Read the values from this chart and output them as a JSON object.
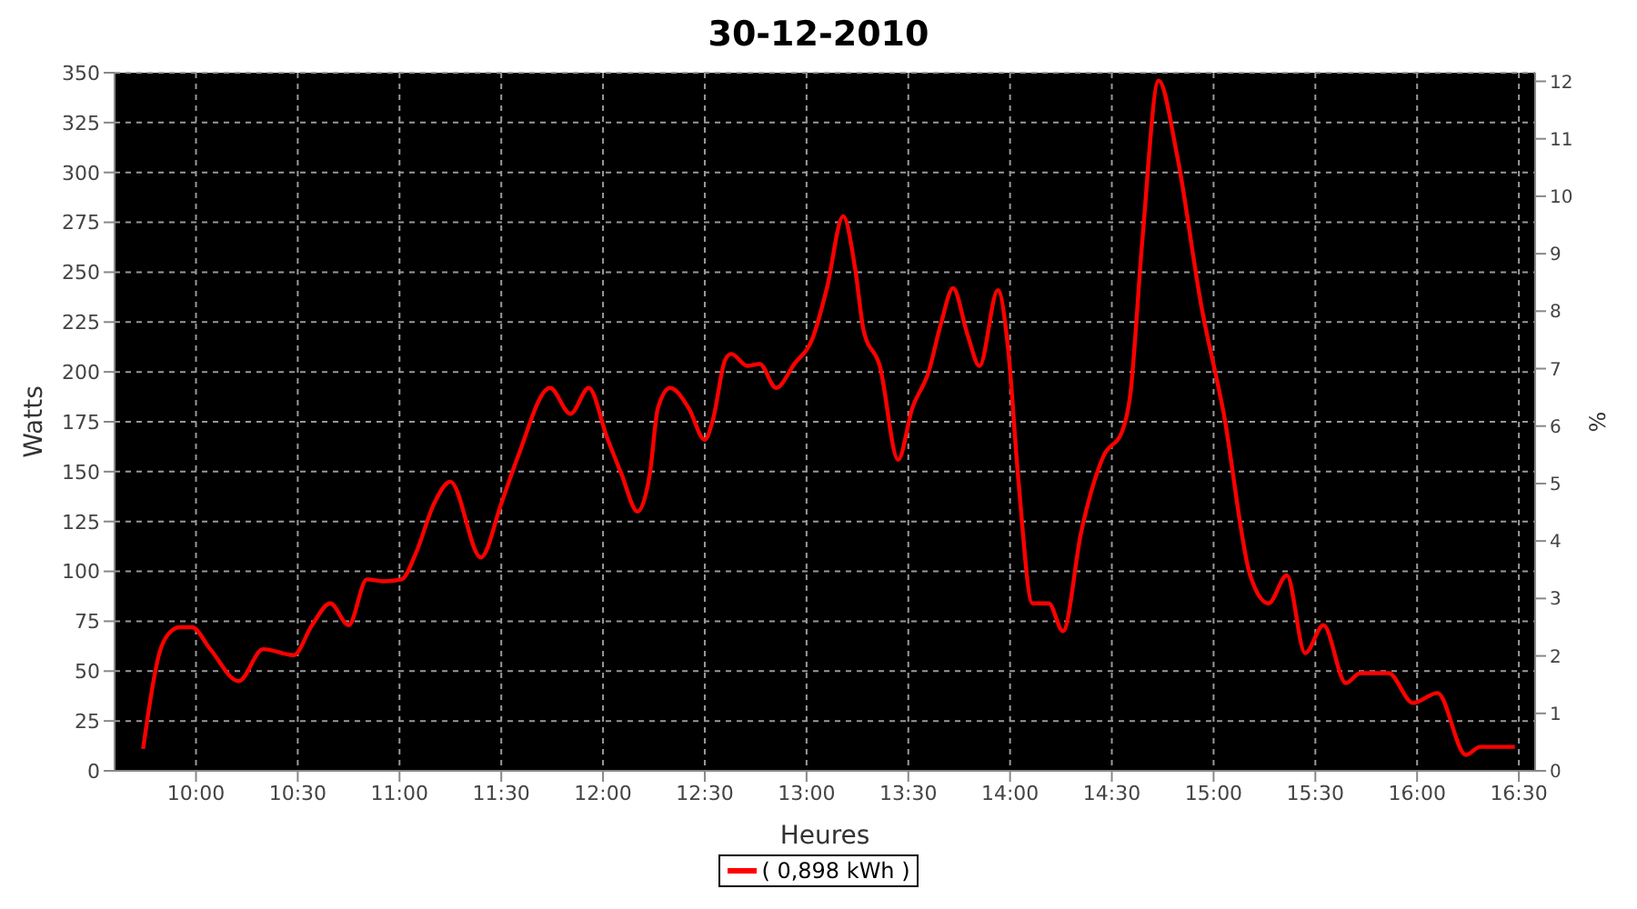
{
  "chart_data": {
    "type": "line",
    "title": "30-12-2010",
    "xlabel": "Heures",
    "ylabel": "Watts",
    "y2label": "%",
    "x": [
      9.74,
      9.82,
      9.86,
      9.92,
      9.98,
      10.07,
      10.21,
      10.33,
      10.48,
      10.57,
      10.66,
      10.75,
      10.84,
      10.92,
      11.01,
      11.08,
      11.17,
      11.25,
      11.4,
      11.5,
      11.58,
      11.74,
      11.84,
      11.93,
      12.02,
      12.09,
      12.17,
      12.23,
      12.27,
      12.33,
      12.42,
      12.5,
      12.54,
      12.6,
      12.63,
      12.71,
      12.77,
      12.85,
      12.94,
      13.03,
      13.1,
      13.18,
      13.24,
      13.28,
      13.36,
      13.45,
      13.52,
      13.6,
      13.66,
      13.72,
      13.79,
      13.85,
      13.94,
      13.99,
      14.04,
      14.11,
      14.19,
      14.26,
      14.35,
      14.46,
      14.55,
      14.59,
      14.65,
      14.73,
      14.82,
      14.94,
      15.05,
      15.18,
      15.27,
      15.36,
      15.45,
      15.54,
      15.65,
      15.72,
      15.86,
      15.98,
      16.1,
      16.24,
      16.31,
      16.48
    ],
    "series": [
      {
        "name": "( 0,898 kWh )",
        "color": "#ff0000",
        "values": [
          11,
          59,
          68,
          72,
          72,
          61,
          45,
          61,
          58,
          73,
          84,
          73,
          96,
          95,
          96,
          109,
          134,
          145,
          107,
          134,
          157,
          192,
          179,
          192,
          167,
          149,
          130,
          149,
          182,
          192,
          182,
          166,
          176,
          206,
          209,
          203,
          204,
          192,
          204,
          217,
          242,
          278,
          251,
          221,
          203,
          156,
          182,
          200,
          224,
          242,
          219,
          203,
          241,
          212,
          147,
          84,
          84,
          70,
          120,
          158,
          170,
          188,
          266,
          346,
          309,
          233,
          179,
          98,
          84,
          98,
          59,
          73,
          44,
          49,
          49,
          34,
          39,
          8,
          12,
          12
        ]
      }
    ],
    "xlim": [
      9.6,
      16.58
    ],
    "xticks": [
      {
        "value": 10,
        "label": "10:00"
      },
      {
        "value": 10.5,
        "label": "10:30"
      },
      {
        "value": 11,
        "label": "11:00"
      },
      {
        "value": 11.5,
        "label": "11:30"
      },
      {
        "value": 12,
        "label": "12:00"
      },
      {
        "value": 12.5,
        "label": "12:30"
      },
      {
        "value": 13,
        "label": "13:00"
      },
      {
        "value": 13.5,
        "label": "13:30"
      },
      {
        "value": 14,
        "label": "14:00"
      },
      {
        "value": 14.5,
        "label": "14:30"
      },
      {
        "value": 15,
        "label": "15:00"
      },
      {
        "value": 15.5,
        "label": "15:30"
      },
      {
        "value": 16,
        "label": "16:00"
      },
      {
        "value": 16.5,
        "label": "16:30"
      }
    ],
    "ylim": [
      0,
      350
    ],
    "yticks": [
      0,
      25,
      50,
      75,
      100,
      125,
      150,
      175,
      200,
      225,
      250,
      275,
      300,
      325,
      350
    ],
    "y2lim": [
      0,
      12.15
    ],
    "y2ticks": [
      0,
      1,
      2,
      3,
      4,
      5,
      6,
      7,
      8,
      9,
      10,
      11,
      12
    ],
    "grid": true,
    "legend": "bottom",
    "marker": "none",
    "line_style": "solid"
  }
}
